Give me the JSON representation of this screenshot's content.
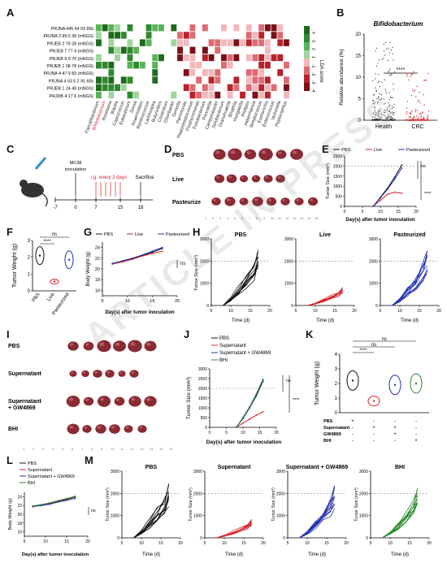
{
  "panel_labels": {
    "A": "A",
    "B": "B",
    "C": "C",
    "D": "D",
    "E": "E",
    "F": "F",
    "G": "G",
    "H": "H",
    "I": "I",
    "J": "J",
    "K": "K",
    "L": "L",
    "M": "M"
  },
  "watermark": "ARTICLE IN PRESS",
  "panelA": {
    "rows": [
      "PRJNA 445 64 03 65k",
      "PRJNA 3 99 5 38 (mNGS)",
      "PRJEB 2 79 28 (mNGS)",
      "PRJEB 7 77 4 (mNGS)",
      "PRJEB 6 0 70 (mNGS)",
      "PRJEB 1 08 78 (mNGS)",
      "PRJNA 4 47 9 83 (mNGS)",
      "PRJNA 4 63 5 2 91 65k",
      "PRJEB 1 24 49 (mNGS)",
      "PRJDB 4 17 6 (mNGS)"
    ],
    "columns": [
      "Faecalibacterium",
      "Bifidobacterium",
      "Roseburia",
      "Blautia",
      "Coprococcus",
      "Eubacterium",
      "Dorea",
      "Anaerostipes",
      "Ruminococcus",
      "Lachnospira",
      "Butyrivibrio",
      "Clostridium",
      "Odoribacter",
      "Gemella",
      "Parvimonas",
      "Peptostreptococcus",
      "Porphyromonas",
      "Fusobacterium",
      "Prevotella",
      "Campylobacter",
      "Solobacterium",
      "Granulicatella",
      "Bilophila",
      "Hungatella",
      "Alistipes",
      "Akkermansia",
      "Streptococcus",
      "Escherichia",
      "Enterococcus",
      "Veillonella",
      "Peptoniphilus"
    ],
    "legend_title": "LDA score",
    "legend_ticks": [
      "4",
      "3",
      "2",
      "1",
      "-1",
      "-2",
      "-3",
      "-4"
    ]
  },
  "panelB": {
    "title": "Bifidobacterium",
    "ylabel": "Relative abundance (%)",
    "sig": "****",
    "xticks": [
      "Health",
      "CRC"
    ],
    "yticks": [
      "0",
      "5",
      "10",
      "15",
      "20"
    ]
  },
  "panelC": {
    "cells": "MC38",
    "cells2": "inoculation",
    "treat": "i.g. every 2 days",
    "sac": "Sacrifice",
    "days": [
      "-7",
      "0",
      "7",
      "15",
      "18"
    ]
  },
  "panelD": {
    "rows": [
      "PBS",
      "Live",
      "Pasteurize"
    ]
  },
  "panelI": {
    "rows": [
      "PBS",
      "Supernatant",
      "Supernatant\n+ GW4869",
      "BHI"
    ]
  },
  "legendEGH": [
    "PBS",
    "Live",
    "Pasteurized"
  ],
  "legendJ": [
    "PBS",
    "Supernatant",
    "Supernatant + GW4869",
    "BHI"
  ],
  "axes": {
    "tumor_size": "Tumor Size (mm³)",
    "tumor_weight": "Tumor Weight (g)",
    "body_weight": "Body Weight (g)",
    "days_after": "Day(s) after tumor inoculation",
    "time": "Time (d)"
  },
  "sig": {
    "ns": "ns",
    "four": "****"
  },
  "panelH_titles": [
    "PBS",
    "Live",
    "Pasteurized"
  ],
  "panelM_titles": [
    "PBS",
    "Supernatant",
    "Supernatant + GW4869",
    "BHI"
  ],
  "panelK_table": {
    "rows": [
      "PBS",
      "Supernatant",
      "GW4869",
      "BHI"
    ],
    "marks": [
      [
        "+",
        "-",
        "-",
        "-"
      ],
      [
        "-",
        "+",
        "+",
        "-"
      ],
      [
        "-",
        "-",
        "+",
        "-"
      ],
      [
        "-",
        "-",
        "-",
        "+"
      ]
    ]
  },
  "colors": {
    "pbs": "#111111",
    "live": "#d8232a",
    "past": "#1c2fb5",
    "gw": "#2233aa",
    "bhi": "#2a8a2a",
    "tumor": "#8a2a32"
  },
  "chart_data": [
    {
      "type": "line",
      "panel": "E",
      "title": "",
      "xlabel": "Day(s) after tumor inoculation",
      "ylabel": "Tumor Size (mm³)",
      "x": [
        0,
        5,
        10,
        15,
        20
      ],
      "ylim": [
        0,
        2500
      ],
      "series": [
        {
          "name": "PBS",
          "x": [
            8,
            10,
            12,
            14,
            16
          ],
          "values": [
            0,
            450,
            900,
            1450,
            2050
          ]
        },
        {
          "name": "Live",
          "x": [
            8,
            10,
            12,
            14,
            16
          ],
          "values": [
            0,
            300,
            600,
            700,
            650
          ]
        },
        {
          "name": "Pasteurized",
          "x": [
            8,
            10,
            12,
            14,
            16
          ],
          "values": [
            0,
            420,
            850,
            1350,
            1900
          ]
        }
      ]
    },
    {
      "type": "scatter",
      "panel": "F",
      "ylabel": "Tumor Weight (g)",
      "categories": [
        "PBS",
        "Live",
        "Pasteurized"
      ],
      "values": [
        2.1,
        0.55,
        1.85
      ],
      "ylim": [
        0,
        3
      ]
    },
    {
      "type": "line",
      "panel": "G",
      "xlabel": "Day(s) after tumor inoculation",
      "ylabel": "Body Weight (g)",
      "ylim": [
        15,
        25
      ],
      "series": [
        {
          "name": "PBS",
          "x": [
            7,
            9,
            11,
            13,
            15,
            17
          ],
          "values": [
            21,
            21.4,
            21.9,
            22.5,
            23.1,
            23.8
          ]
        },
        {
          "name": "Live",
          "x": [
            7,
            9,
            11,
            13,
            15,
            17
          ],
          "values": [
            20.9,
            21.3,
            21.8,
            22.4,
            22.9,
            23.3
          ]
        },
        {
          "name": "Pasteurized",
          "x": [
            7,
            9,
            11,
            13,
            15,
            17
          ],
          "values": [
            21,
            21.5,
            22,
            22.6,
            23.3,
            24
          ]
        }
      ]
    },
    {
      "type": "line",
      "panel": "J",
      "xlabel": "Day(s) after tumor inoculation",
      "ylabel": "Tumor Size (mm³)",
      "ylim": [
        0,
        3000
      ],
      "series": [
        {
          "name": "PBS",
          "x": [
            8,
            10,
            12,
            14,
            16
          ],
          "values": [
            0,
            500,
            1050,
            1700,
            2450
          ]
        },
        {
          "name": "Supernatant",
          "x": [
            8,
            10,
            12,
            14,
            16
          ],
          "values": [
            0,
            220,
            420,
            620,
            800
          ]
        },
        {
          "name": "Supernatant + GW4869",
          "x": [
            8,
            10,
            12,
            14,
            16
          ],
          "values": [
            0,
            450,
            1000,
            1600,
            2350
          ]
        },
        {
          "name": "BHI",
          "x": [
            8,
            10,
            12,
            14,
            16
          ],
          "values": [
            0,
            480,
            1030,
            1650,
            2400
          ]
        }
      ]
    },
    {
      "type": "scatter",
      "panel": "K",
      "ylabel": "Tumor Weight (g)",
      "categories": [
        "PBS",
        "Supernatant",
        "Supernatant + GW4869",
        "BHI"
      ],
      "values": [
        2.2,
        0.8,
        1.9,
        2.0
      ],
      "ylim": [
        0,
        4
      ]
    },
    {
      "type": "line",
      "panel": "L",
      "xlabel": "Day(s) after tumor inoculation",
      "ylabel": "Body Weight (g)",
      "ylim": [
        15,
        25
      ],
      "series": [
        {
          "name": "PBS",
          "x": [
            7,
            9,
            11,
            13,
            15,
            17
          ],
          "values": [
            21.8,
            22,
            22.4,
            22.9,
            23.4,
            23.9
          ]
        },
        {
          "name": "Supernatant",
          "x": [
            7,
            9,
            11,
            13,
            15,
            17
          ],
          "values": [
            21.7,
            22.1,
            22.5,
            23,
            23.5,
            24.1
          ]
        },
        {
          "name": "Supernatant + GW4869",
          "x": [
            7,
            9,
            11,
            13,
            15,
            17
          ],
          "values": [
            21.8,
            22,
            22.3,
            22.8,
            23.2,
            23.6
          ]
        },
        {
          "name": "BHI",
          "x": [
            7,
            9,
            11,
            13,
            15,
            17
          ],
          "values": [
            21.9,
            22.2,
            22.6,
            23.1,
            23.6,
            24
          ]
        }
      ]
    }
  ]
}
